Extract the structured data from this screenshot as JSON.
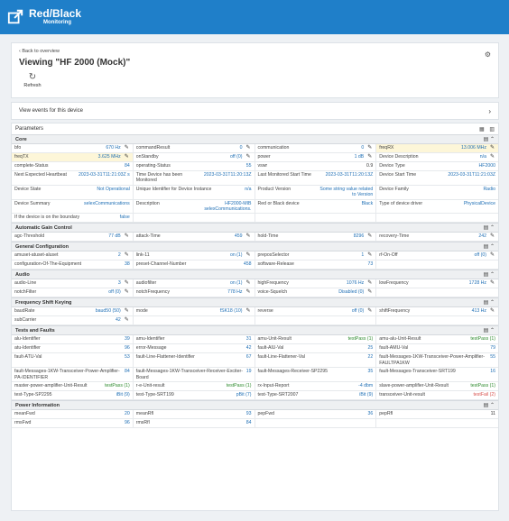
{
  "app": {
    "title": "Red/Black",
    "subtitle": "Monitoring"
  },
  "header": {
    "back_label": "Back to overview",
    "page_title": "Viewing \"HF 2000 (Mock)\"",
    "refresh_label": "Refresh"
  },
  "events": {
    "label": "View events for this device"
  },
  "parameters": {
    "label": "Parameters"
  },
  "colors": {
    "brand": "#1f7fc9",
    "link": "#1f6fb5",
    "pass": "#2e8b2e",
    "fail": "#d9534f",
    "highlight": "#fdf6d8"
  },
  "sections": [
    {
      "title": "Core",
      "cells": [
        {
          "k": "bfo",
          "v": "670 Hz",
          "e": true,
          "c": "b"
        },
        {
          "k": "commandResult",
          "v": "0",
          "e": true,
          "c": "b"
        },
        {
          "k": "communication",
          "v": "0",
          "e": true,
          "c": "b"
        },
        {
          "k": "freqRX",
          "v": "13.006 MHz",
          "e": true,
          "c": "b",
          "hl": true
        },
        {
          "k": "freqTX",
          "v": "3.625 MHz",
          "e": true,
          "c": "b",
          "hl": true
        },
        {
          "k": "onStandby",
          "v": "off (0)",
          "e": true,
          "c": "b"
        },
        {
          "k": "power",
          "v": "1 dB",
          "e": true,
          "c": "b"
        },
        {
          "k": "Device Description",
          "v": "n/a",
          "e": true,
          "c": "b"
        },
        {
          "k": "complete-Status",
          "v": "84",
          "e": false,
          "c": "b"
        },
        {
          "k": "operating-Status",
          "v": "55",
          "e": false,
          "c": "b"
        },
        {
          "k": "vswr",
          "v": "0.9",
          "e": false,
          "c": "k2"
        },
        {
          "k": "Device Type",
          "v": "HF2000",
          "e": false,
          "c": "b"
        },
        {
          "k": "Next Expected Heartbeat",
          "v": "2023-03-31T11:21:03Z s",
          "e": false,
          "c": "b"
        },
        {
          "k": "Time Device has been Monitored",
          "v": "2023-03-31T11:20:13Z",
          "e": false,
          "c": "b"
        },
        {
          "k": "Last Monitored Start Time",
          "v": "2023-03-31T11:20:13Z",
          "e": false,
          "c": "b"
        },
        {
          "k": "Device Start Time",
          "v": "2023-03-31T11:21:03Z",
          "e": false,
          "c": "b"
        },
        {
          "k": "Device State",
          "v": "Not Operational",
          "e": false,
          "c": "b"
        },
        {
          "k": "Unique Identifier for Device Instance",
          "v": "n/a",
          "e": false,
          "c": "b"
        },
        {
          "k": "Product Version",
          "v": "Some string value related to Version",
          "e": false,
          "c": "b"
        },
        {
          "k": "Device Family",
          "v": "Radio",
          "e": false,
          "c": "b"
        },
        {
          "k": "Device Summary",
          "v": "selexCommunications",
          "e": false,
          "c": "b"
        },
        {
          "k": "Description",
          "v": "HF2000-MIB selexCommunications.",
          "e": false,
          "c": "b"
        },
        {
          "k": "Red or Black device",
          "v": "Black",
          "e": false,
          "c": "b"
        },
        {
          "k": "Type of device driver",
          "v": "PhysicalDevice",
          "e": false,
          "c": "b"
        },
        {
          "k": "If the device is on the boundary",
          "v": "false",
          "e": false,
          "c": "b"
        },
        {
          "k": "",
          "v": "",
          "e": false,
          "c": "b"
        },
        {
          "k": "",
          "v": "",
          "e": false,
          "c": "b"
        },
        {
          "k": "",
          "v": "",
          "e": false,
          "c": "b"
        }
      ]
    },
    {
      "title": "Automatic Gain Control",
      "cells": [
        {
          "k": "agc-Threshold",
          "v": "77 dB",
          "e": true,
          "c": "b"
        },
        {
          "k": "attack-Time",
          "v": "459",
          "e": true,
          "c": "b"
        },
        {
          "k": "hold-Time",
          "v": "8296",
          "e": true,
          "c": "b"
        },
        {
          "k": "recovery-Time",
          "v": "242",
          "e": true,
          "c": "b"
        }
      ]
    },
    {
      "title": "General Configuration",
      "cells": [
        {
          "k": "amuset-atuset-aluset",
          "v": "2",
          "e": true,
          "c": "b"
        },
        {
          "k": "link-11",
          "v": "on (1)",
          "e": true,
          "c": "b"
        },
        {
          "k": "preposSelector",
          "v": "1",
          "e": true,
          "c": "b"
        },
        {
          "k": "rf-On-Off",
          "v": "off (0)",
          "e": true,
          "c": "b"
        },
        {
          "k": "configuration-Of-The-Equipment",
          "v": "38",
          "e": false,
          "c": "b"
        },
        {
          "k": "preset-Channel-Number",
          "v": "458",
          "e": false,
          "c": "b"
        },
        {
          "k": "software-Release",
          "v": "73",
          "e": false,
          "c": "b"
        },
        {
          "k": "",
          "v": "",
          "e": false,
          "c": "b"
        }
      ]
    },
    {
      "title": "Audio",
      "cells": [
        {
          "k": "audio-Line",
          "v": "3",
          "e": true,
          "c": "b"
        },
        {
          "k": "audiofilter",
          "v": "on (1)",
          "e": true,
          "c": "b"
        },
        {
          "k": "highFrequency",
          "v": "1076 Hz",
          "e": true,
          "c": "b"
        },
        {
          "k": "lowFrequency",
          "v": "1728 Hz",
          "e": true,
          "c": "b"
        },
        {
          "k": "notchFilter",
          "v": "off (0)",
          "e": true,
          "c": "b"
        },
        {
          "k": "notchFrequency",
          "v": "778 Hz",
          "e": true,
          "c": "b"
        },
        {
          "k": "voice-Squelch",
          "v": "Disabled (0)",
          "e": true,
          "c": "b"
        },
        {
          "k": "",
          "v": "",
          "e": false,
          "c": "b"
        }
      ]
    },
    {
      "title": "Frequency Shift Keying",
      "cells": [
        {
          "k": "baudRate",
          "v": "baud50 (50)",
          "e": true,
          "c": "b"
        },
        {
          "k": "mode",
          "v": "fSK18 (10)",
          "e": true,
          "c": "b"
        },
        {
          "k": "reverse",
          "v": "off (0)",
          "e": true,
          "c": "b"
        },
        {
          "k": "shiftFrequency",
          "v": "413 Hz",
          "e": true,
          "c": "b"
        },
        {
          "k": "subCarrier",
          "v": "42",
          "e": true,
          "c": "b"
        },
        {
          "k": "",
          "v": "",
          "e": false,
          "c": "b"
        },
        {
          "k": "",
          "v": "",
          "e": false,
          "c": "b"
        },
        {
          "k": "",
          "v": "",
          "e": false,
          "c": "b"
        }
      ]
    },
    {
      "title": "Tests and Faults",
      "cells": [
        {
          "k": "alu-Identifier",
          "v": "39",
          "e": false,
          "c": "b"
        },
        {
          "k": "amu-Identifier",
          "v": "31",
          "e": false,
          "c": "b"
        },
        {
          "k": "amu-Unit-Result",
          "v": "testPass (1)",
          "e": false,
          "c": "g"
        },
        {
          "k": "amu-alu-Unit-Result",
          "v": "testPass (1)",
          "e": false,
          "c": "g"
        },
        {
          "k": "atu-Identifier",
          "v": "96",
          "e": false,
          "c": "b"
        },
        {
          "k": "error-Message",
          "v": "42",
          "e": false,
          "c": "b"
        },
        {
          "k": "fault-AlU-Val",
          "v": "25",
          "e": false,
          "c": "b"
        },
        {
          "k": "fault-AMU-Val",
          "v": "79",
          "e": false,
          "c": "b"
        },
        {
          "k": "fault-ATU-Val",
          "v": "53",
          "e": false,
          "c": "b"
        },
        {
          "k": "fault-Line-Flattener-Identifier",
          "v": "67",
          "e": false,
          "c": "b"
        },
        {
          "k": "fault-Line-Flattener-Val",
          "v": "22",
          "e": false,
          "c": "b"
        },
        {
          "k": "fault-Messages-1KW-Transceiver-Power-Amplifier-FAULTPA1KW",
          "v": "55",
          "e": false,
          "c": "b"
        },
        {
          "k": "fault-Messages-1KW-Transceiver-Power-Amplifier-PA-IDENTIFIER",
          "v": "84",
          "e": false,
          "c": "b"
        },
        {
          "k": "fault-Messages-1KW-Transceiver-Receiver-Exciter-Board",
          "v": "19",
          "e": false,
          "c": "b"
        },
        {
          "k": "fault-Messages-Receiver-SP2295",
          "v": "35",
          "e": false,
          "c": "b"
        },
        {
          "k": "fault-Messages-Transceiver-SRT199",
          "v": "16",
          "e": false,
          "c": "b"
        },
        {
          "k": "master-power-amplifier-Unit-Result",
          "v": "testPass (1)",
          "e": false,
          "c": "g"
        },
        {
          "k": "r-e-Unit-result",
          "v": "testPass (1)",
          "e": false,
          "c": "g"
        },
        {
          "k": "rx-Input-Report",
          "v": "-4 dbm",
          "e": false,
          "c": "b"
        },
        {
          "k": "slave-power-amplifier-Unit-Result",
          "v": "testPass (1)",
          "e": false,
          "c": "g"
        },
        {
          "k": "test-Type-SP2295",
          "v": "iBit (9)",
          "e": false,
          "c": "b"
        },
        {
          "k": "test-Type-SRT199",
          "v": "pBit (7)",
          "e": false,
          "c": "b"
        },
        {
          "k": "test-Type-SRT2007",
          "v": "iBit (9)",
          "e": false,
          "c": "b"
        },
        {
          "k": "transceiver-Unit-result",
          "v": "testFail (2)",
          "e": false,
          "c": "r"
        }
      ]
    },
    {
      "title": "Power Information",
      "cells": [
        {
          "k": "meanFwd",
          "v": "20",
          "e": false,
          "c": "b"
        },
        {
          "k": "meanRfl",
          "v": "93",
          "e": false,
          "c": "b"
        },
        {
          "k": "pepFwd",
          "v": "36",
          "e": false,
          "c": "b"
        },
        {
          "k": "pepRfl",
          "v": "11",
          "e": false,
          "c": "k2"
        },
        {
          "k": "rmsFwd",
          "v": "96",
          "e": false,
          "c": "b"
        },
        {
          "k": "rmsRfl",
          "v": "84",
          "e": false,
          "c": "b"
        },
        {
          "k": "",
          "v": "",
          "e": false,
          "c": "b"
        },
        {
          "k": "",
          "v": "",
          "e": false,
          "c": "b"
        }
      ]
    }
  ]
}
